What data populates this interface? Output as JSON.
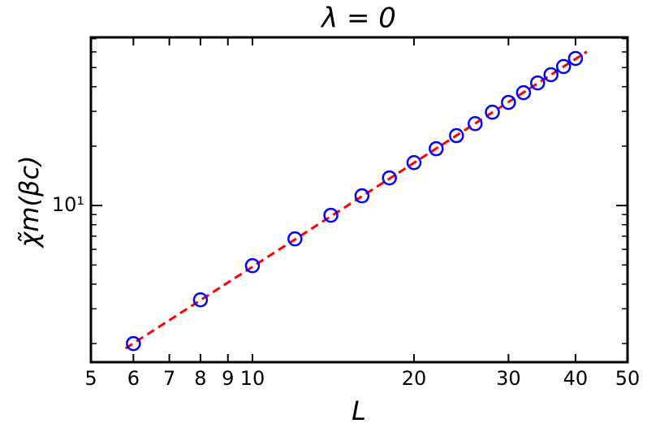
{
  "chart_data": {
    "type": "scatter",
    "title": "λ = 0",
    "x_label": "L",
    "y_label": "χ̃m(βc)",
    "xscale": "log",
    "yscale": "log",
    "xlim": [
      5,
      50
    ],
    "ylim": [
      1.61,
      71.1
    ],
    "xticks": [
      5,
      6,
      7,
      8,
      9,
      10,
      20,
      30,
      40,
      50
    ],
    "yticks": [
      {
        "value": 10,
        "label": "10¹"
      }
    ],
    "yminorticks": [
      2,
      3,
      4,
      5,
      6,
      7,
      8,
      9,
      20,
      30,
      40,
      50,
      60,
      70
    ],
    "series": [
      {
        "marker": "circle",
        "color": "#0000ff",
        "x": [
          6,
          8,
          10,
          12,
          14,
          16,
          18,
          20,
          22,
          24,
          26,
          28,
          30,
          32,
          34,
          36,
          38,
          40
        ],
        "values": [
          2.0,
          3.33,
          4.96,
          6.78,
          8.93,
          11.2,
          13.8,
          16.5,
          19.4,
          22.6,
          26.0,
          29.7,
          33.3,
          37.3,
          41.8,
          46.0,
          50.6,
          55.6
        ]
      },
      {
        "marker": "dashed-line",
        "color": "#ff0000",
        "x": [
          5.8,
          42
        ],
        "values": [
          1.89,
          60.2
        ]
      }
    ]
  }
}
